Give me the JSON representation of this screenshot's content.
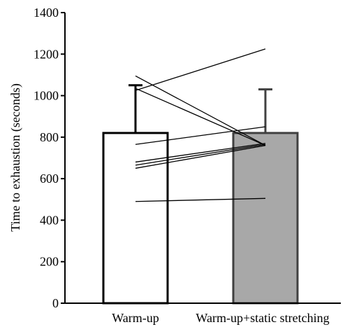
{
  "chart_data": {
    "type": "bar",
    "categories": [
      "Warm-up",
      "Warm-up+static stretching"
    ],
    "bars": [
      {
        "value": 820,
        "error_upper": 1050,
        "fill": "#ffffff",
        "stroke": "#000000"
      },
      {
        "value": 820,
        "error_upper": 1030,
        "fill": "#a8a8a8",
        "stroke": "#404040"
      }
    ],
    "individual_lines": [
      [
        1095,
        760
      ],
      [
        1035,
        760
      ],
      [
        1025,
        1225
      ],
      [
        765,
        850
      ],
      [
        680,
        770
      ],
      [
        665,
        765
      ],
      [
        650,
        760
      ],
      [
        490,
        505
      ]
    ],
    "ylabel": "Time to exhaustion (seconds)",
    "ylim": [
      0,
      1400
    ],
    "yticks": [
      0,
      200,
      400,
      600,
      800,
      1000,
      1200,
      1400
    ],
    "grid": false
  }
}
